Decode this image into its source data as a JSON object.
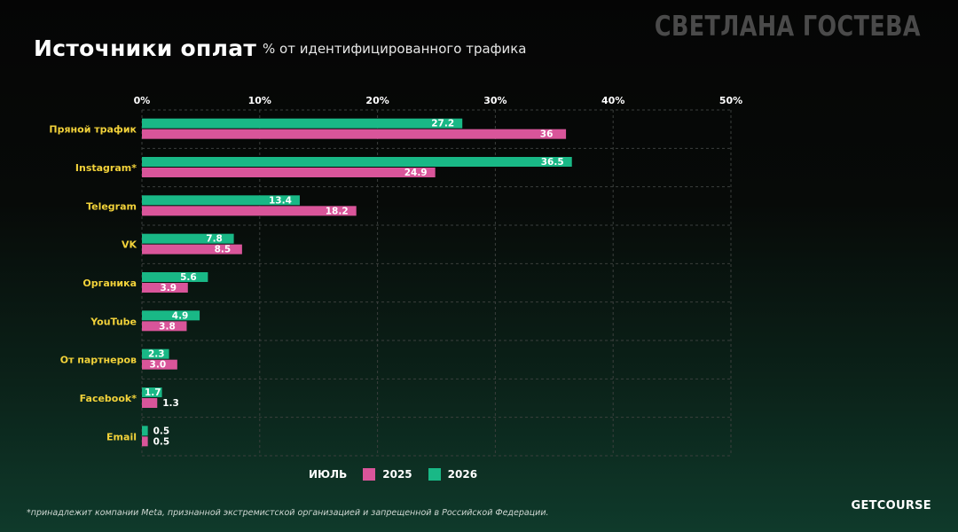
{
  "header": {
    "title": "Источники оплат",
    "subtitle": "% от идентифицированного трафика",
    "watermark": "СВЕТЛАНА ГОСТЕВА"
  },
  "legend": {
    "label": "ИЮЛЬ",
    "items": [
      {
        "label": "2025",
        "color": "#d9559a"
      },
      {
        "label": "2026",
        "color": "#19b886"
      }
    ]
  },
  "footer": {
    "footnote": "*принадлежит компании Meta, признанной экстремистской организацией и запрещенной в Российской Федерации.",
    "brand": "GETCOURSE"
  },
  "colors": {
    "category_label": "#f2d23a",
    "grid": "#3b3f3d",
    "series_2025": "#d9559a",
    "series_2026": "#19b886"
  },
  "chart_data": {
    "type": "bar",
    "orientation": "horizontal",
    "title": "Источники оплат",
    "subtitle": "% от идентифицированного трафика",
    "categories": [
      "Пряной трафик",
      "Instagram*",
      "Telegram",
      "VK",
      "Органика",
      "YouTube",
      "От партнеров",
      "Facebook*",
      "Email"
    ],
    "series": [
      {
        "name": "2026",
        "values": [
          27.2,
          36.5,
          13.4,
          7.8,
          5.6,
          4.9,
          2.3,
          1.7,
          0.5
        ],
        "labels": [
          "27.2",
          "36.5",
          "13.4",
          "7.8",
          "5.6",
          "4.9",
          "2.3",
          "1.7",
          "0.5"
        ]
      },
      {
        "name": "2025",
        "values": [
          36,
          24.9,
          18.2,
          8.5,
          3.9,
          3.8,
          3.0,
          1.3,
          0.5
        ],
        "labels": [
          "36",
          "24.9",
          "18.2",
          "8.5",
          "3.9",
          "3.8",
          "3.0",
          "1.3",
          "0.5"
        ]
      }
    ],
    "xlim": [
      0,
      50
    ],
    "xticks": [
      "0%",
      "10%",
      "20%",
      "30%",
      "40%",
      "50%"
    ],
    "grid": true,
    "legend_position": "bottom"
  }
}
